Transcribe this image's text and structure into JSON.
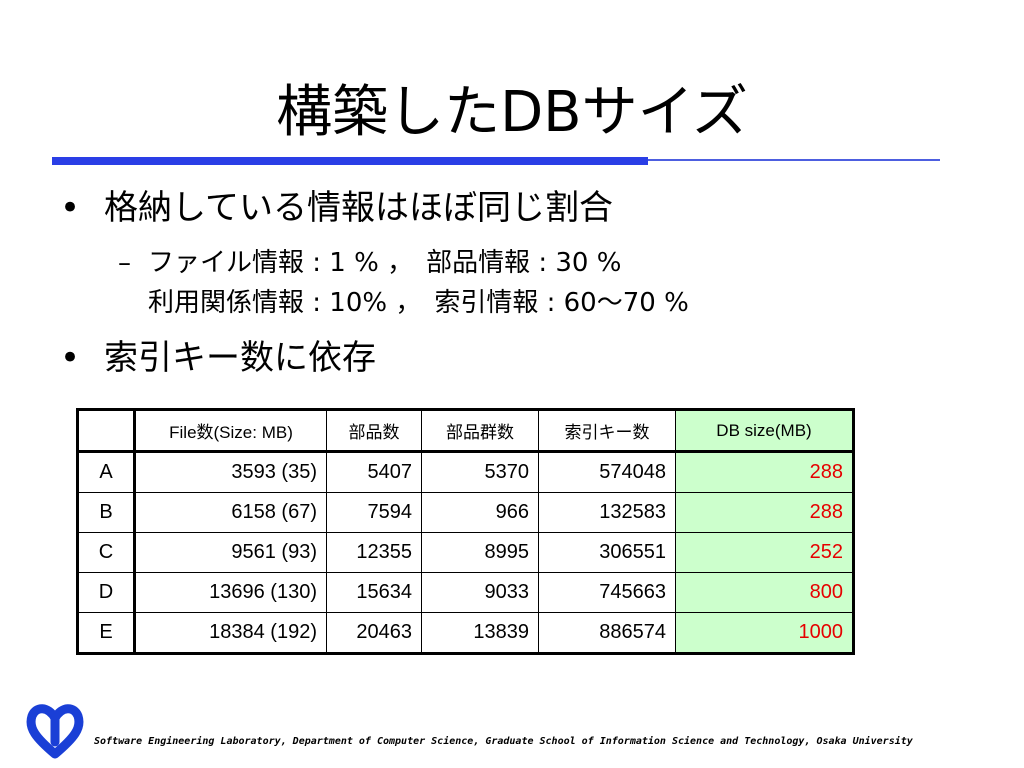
{
  "slide": {
    "title": "構築したDBサイズ",
    "bullets": [
      {
        "text": "格納している情報はほぼ同じ割合"
      },
      {
        "text": "索引キー数に依存"
      }
    ],
    "sub_lines": [
      "ファイル情報 : 1 % ，　部品情報 : 30 %",
      "利用関係情報 : 10% ，　索引情報 : 60～70 %"
    ],
    "bullet_char": "•",
    "dash_char": "–"
  },
  "table": {
    "headers": [
      "",
      "File数(Size: MB)",
      "部品数",
      "部品群数",
      "索引キー数",
      "DB size(MB)"
    ],
    "rows": [
      [
        "A",
        "3593 (35)",
        "5407",
        "5370",
        "574048",
        "288"
      ],
      [
        "B",
        "6158 (67)",
        "7594",
        "966",
        "132583",
        "288"
      ],
      [
        "C",
        "9561 (93)",
        "12355",
        "8995",
        "306551",
        "252"
      ],
      [
        "D",
        "13696 (130)",
        "15634",
        "9033",
        "745663",
        "800"
      ],
      [
        "E",
        "18384 (192)",
        "20463",
        "13839",
        "886574",
        "1000"
      ]
    ],
    "highlight_column_color": "#ccffcc",
    "highlight_text_color": "#e60000"
  },
  "footer": {
    "text": "Software Engineering Laboratory, Department of Computer Science, Graduate School of Information Science and Technology, Osaka University",
    "logo_icon": "osaka-university-logo-icon",
    "logo_color": "#1a3fd6"
  },
  "colors": {
    "accent_rule": "#2a3ee6"
  }
}
